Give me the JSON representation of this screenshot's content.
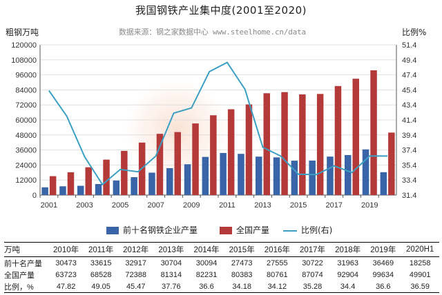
{
  "chart_data": {
    "type": "bar",
    "title": "我国钢铁产业集中度(2001至2020)",
    "source": "数据来源：钢之家数据中心 www.steelhome.cn/data",
    "ylabel": "粗钢万吨",
    "y2label": "比例%",
    "ylim": [
      0,
      120000
    ],
    "yticks": [
      0,
      12000,
      24000,
      36000,
      48000,
      60000,
      72000,
      84000,
      96000,
      108000,
      120000
    ],
    "y2lim": [
      31.4,
      51.4
    ],
    "y2ticks": [
      31.4,
      33.4,
      35.4,
      37.4,
      39.4,
      41.4,
      43.4,
      45.4,
      47.4,
      49.4,
      51.4
    ],
    "x": [
      2001,
      2002,
      2003,
      2004,
      2005,
      2006,
      2007,
      2008,
      2009,
      2010,
      2011,
      2012,
      2013,
      2014,
      2015,
      2016,
      2017,
      2018,
      2019,
      "2020H1"
    ],
    "xticks": [
      "2001",
      "2003",
      "2005",
      "2007",
      "2009",
      "2011",
      "2013",
      "2015",
      "2017",
      "2019"
    ],
    "series": [
      {
        "name": "前十名钢铁企业产量",
        "kind": "bar",
        "color": "#3a64a8",
        "values": [
          6200,
          7000,
          7400,
          8800,
          11600,
          14300,
          17900,
          21500,
          24600,
          30473,
          33615,
          32917,
          30704,
          30094,
          27473,
          27555,
          30722,
          31963,
          36469,
          18258
        ]
      },
      {
        "name": "全国产量",
        "kind": "bar",
        "color": "#b43a3a",
        "values": [
          15100,
          18200,
          22200,
          28300,
          35300,
          41900,
          48900,
          50300,
          57200,
          63723,
          68528,
          72388,
          81314,
          82231,
          80383,
          80761,
          87074,
          92904,
          99634,
          49901
        ]
      },
      {
        "name": "比例(右)",
        "kind": "line",
        "color": "#3b9fc4",
        "axis": "right",
        "values": [
          45.3,
          41.9,
          36.5,
          32.8,
          34.8,
          34.5,
          36.6,
          42.3,
          43.0,
          47.82,
          49.05,
          45.47,
          37.76,
          36.6,
          34.18,
          34.12,
          35.28,
          34.4,
          36.6,
          36.59
        ]
      }
    ],
    "legend_placement": "bottom",
    "grid": true
  },
  "table": {
    "header": [
      "万吨",
      "2010年",
      "2011年",
      "2012年",
      "2013年",
      "2014年",
      "2015年",
      "2016年",
      "2017年",
      "2018年",
      "2019年",
      "2020H1"
    ],
    "rows": [
      [
        "前十名产量",
        "30473",
        "33615",
        "32917",
        "30704",
        "30094",
        "27473",
        "27555",
        "30722",
        "31963",
        "36469",
        "18258"
      ],
      [
        "全国产量",
        "63723",
        "68528",
        "72388",
        "81314",
        "82231",
        "80383",
        "80761",
        "87074",
        "92904",
        "99634",
        "49901"
      ],
      [
        "比例，%",
        "47.82",
        "49.05",
        "45.47",
        "37.76",
        "36.6",
        "34.18",
        "34.12",
        "35.28",
        "34.4",
        "36.6",
        "36.59"
      ]
    ]
  }
}
